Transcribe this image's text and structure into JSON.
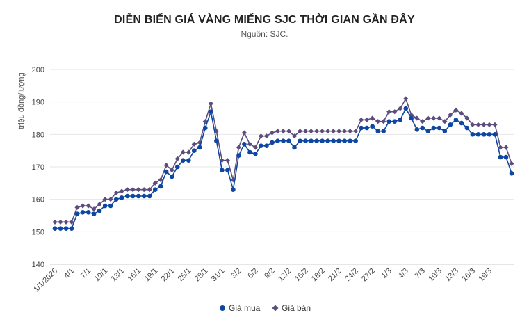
{
  "chart_data": {
    "type": "line",
    "title": "DIỄN BIẾN GIÁ VÀNG MIẾNG SJC THỜI GIAN GẦN ĐÂY",
    "subtitle": "Nguồn: SJC.",
    "xlabel": "",
    "ylabel": "triệu đồng/lượng",
    "ylim": [
      140,
      200
    ],
    "yticks": [
      140,
      150,
      160,
      170,
      180,
      190,
      200
    ],
    "grid": true,
    "legend": "bottom",
    "x_tick_labels": [
      "1/1/2026",
      "4/1",
      "7/1",
      "10/1",
      "13/1",
      "16/1",
      "19/1",
      "22/1",
      "25/1",
      "28/1",
      "31/1",
      "3/2",
      "6/2",
      "9/2",
      "12/2",
      "15/2",
      "18/2",
      "21/2",
      "24/2",
      "27/2",
      "1/3",
      "4/3",
      "7/3",
      "10/3",
      "13/3",
      "16/3",
      "19/3"
    ],
    "series": [
      {
        "name": "Giá mua",
        "color": "#0d47a1",
        "marker": "circle",
        "values": [
          151,
          151,
          151,
          151,
          155.5,
          156,
          156,
          155.5,
          156.5,
          158,
          158,
          160,
          160.5,
          161,
          161,
          161,
          161,
          161,
          163,
          164,
          168.5,
          167,
          170,
          172,
          172,
          175,
          176,
          182,
          187,
          178,
          169,
          169,
          163,
          173.5,
          177,
          174.5,
          174,
          176.5,
          176.5,
          177.5,
          178,
          178,
          178,
          176,
          178,
          178,
          178,
          178,
          178,
          178,
          178,
          178,
          178,
          178,
          178,
          182,
          182,
          182.5,
          181,
          181,
          184,
          184,
          184.5,
          188,
          185,
          181.5,
          182,
          181,
          182,
          182,
          181,
          183,
          184.5,
          183.5,
          182,
          180,
          180,
          180,
          180,
          180,
          173,
          173,
          168
        ]
      },
      {
        "name": "Giá bán",
        "color": "#5c4d7d",
        "marker": "diamond",
        "values": [
          153,
          153,
          153,
          153,
          157.5,
          158,
          158,
          157,
          158.5,
          160,
          160,
          162,
          162.5,
          163,
          163,
          163,
          163,
          163,
          165,
          166,
          170.5,
          169,
          172.5,
          174.5,
          174.5,
          177,
          177.5,
          184,
          189.5,
          181,
          172,
          172,
          166,
          176,
          180.5,
          177,
          176,
          179.5,
          179.5,
          180.5,
          181,
          181,
          181,
          179.5,
          181,
          181,
          181,
          181,
          181,
          181,
          181,
          181,
          181,
          181,
          181,
          184.5,
          184.5,
          185,
          184,
          184,
          187,
          187,
          188,
          191,
          186,
          185,
          184,
          185,
          185,
          185,
          184,
          186,
          187.5,
          186.5,
          185,
          183,
          183,
          183,
          183,
          183,
          176,
          176,
          171
        ]
      }
    ]
  }
}
